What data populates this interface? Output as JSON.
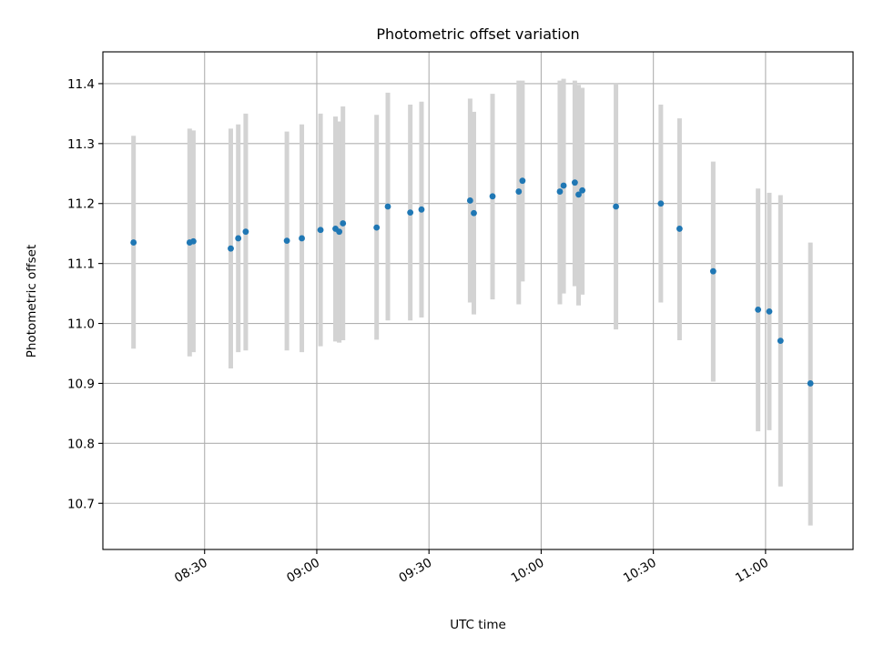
{
  "chart_data": {
    "type": "scatter",
    "title": "Photometric offset variation",
    "xlabel": "UTC time",
    "ylabel": "Photometric offset",
    "x_ticks": [
      "08:30",
      "09:00",
      "09:30",
      "10:00",
      "10:30",
      "11:00"
    ],
    "y_ticks": [
      "10.7",
      "10.8",
      "10.9",
      "11.0",
      "11.1",
      "11.2",
      "11.3",
      "11.4"
    ],
    "xlim": [
      "08:02:48",
      "11:23:24"
    ],
    "ylim": [
      10.623,
      11.453
    ],
    "grid": true,
    "colors": {
      "point": "#1f77b4",
      "errorbar": "#d3d3d3",
      "grid": "#b0b0b0"
    },
    "series": [
      {
        "points": [
          {
            "x": "08:11",
            "y": 11.135,
            "low": 10.958,
            "high": 11.313
          },
          {
            "x": "08:26",
            "y": 11.135,
            "low": 10.945,
            "high": 11.325
          },
          {
            "x": "08:27",
            "y": 11.137,
            "low": 10.952,
            "high": 11.322
          },
          {
            "x": "08:37",
            "y": 11.125,
            "low": 10.925,
            "high": 11.325
          },
          {
            "x": "08:39",
            "y": 11.142,
            "low": 10.952,
            "high": 11.332
          },
          {
            "x": "08:41",
            "y": 11.153,
            "low": 10.955,
            "high": 11.35
          },
          {
            "x": "08:52",
            "y": 11.138,
            "low": 10.955,
            "high": 11.32
          },
          {
            "x": "08:56",
            "y": 11.142,
            "low": 10.952,
            "high": 11.332
          },
          {
            "x": "09:01",
            "y": 11.156,
            "low": 10.962,
            "high": 11.35
          },
          {
            "x": "09:05",
            "y": 11.158,
            "low": 10.97,
            "high": 11.345
          },
          {
            "x": "09:06",
            "y": 11.153,
            "low": 10.968,
            "high": 11.337
          },
          {
            "x": "09:07",
            "y": 11.167,
            "low": 10.972,
            "high": 11.362
          },
          {
            "x": "09:16",
            "y": 11.16,
            "low": 10.973,
            "high": 11.348
          },
          {
            "x": "09:19",
            "y": 11.195,
            "low": 11.005,
            "high": 11.385
          },
          {
            "x": "09:25",
            "y": 11.185,
            "low": 11.005,
            "high": 11.365
          },
          {
            "x": "09:28",
            "y": 11.19,
            "low": 11.01,
            "high": 11.37
          },
          {
            "x": "09:41",
            "y": 11.205,
            "low": 11.035,
            "high": 11.375
          },
          {
            "x": "09:42",
            "y": 11.184,
            "low": 11.015,
            "high": 11.353
          },
          {
            "x": "09:47",
            "y": 11.212,
            "low": 11.04,
            "high": 11.383
          },
          {
            "x": "09:54",
            "y": 11.22,
            "low": 11.032,
            "high": 11.405
          },
          {
            "x": "09:55",
            "y": 11.238,
            "low": 11.07,
            "high": 11.405
          },
          {
            "x": "10:05",
            "y": 11.22,
            "low": 11.032,
            "high": 11.405
          },
          {
            "x": "10:06",
            "y": 11.23,
            "low": 11.05,
            "high": 11.408
          },
          {
            "x": "10:09",
            "y": 11.235,
            "low": 11.062,
            "high": 11.405
          },
          {
            "x": "10:10",
            "y": 11.215,
            "low": 11.03,
            "high": 11.398
          },
          {
            "x": "10:11",
            "y": 11.222,
            "low": 11.048,
            "high": 11.393
          },
          {
            "x": "10:20",
            "y": 11.195,
            "low": 10.99,
            "high": 11.4
          },
          {
            "x": "10:32",
            "y": 11.2,
            "low": 11.035,
            "high": 11.365
          },
          {
            "x": "10:37",
            "y": 11.158,
            "low": 10.972,
            "high": 11.342
          },
          {
            "x": "10:46",
            "y": 11.087,
            "low": 10.903,
            "high": 11.27
          },
          {
            "x": "10:58",
            "y": 11.023,
            "low": 10.82,
            "high": 11.225
          },
          {
            "x": "11:01",
            "y": 11.02,
            "low": 10.822,
            "high": 11.218
          },
          {
            "x": "11:04",
            "y": 10.971,
            "low": 10.728,
            "high": 11.214
          },
          {
            "x": "11:12",
            "y": 10.9,
            "low": 10.663,
            "high": 11.135
          }
        ]
      }
    ]
  }
}
